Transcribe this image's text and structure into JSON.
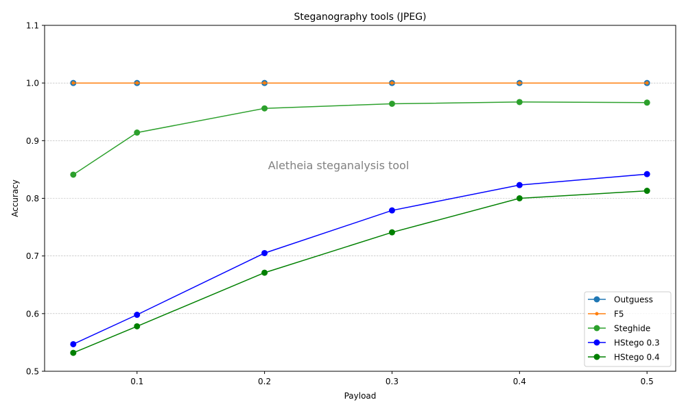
{
  "chart_data": {
    "type": "line",
    "title": "Steganography tools (JPEG)",
    "xlabel": "Payload",
    "ylabel": "Accuracy",
    "annotation": "Aletheia steganalysis tool",
    "xlim": [
      0.0275,
      0.5225
    ],
    "ylim": [
      0.5,
      1.1
    ],
    "xticks": [
      0.1,
      0.2,
      0.3,
      0.4,
      0.5
    ],
    "xtick_labels": [
      "0.1",
      "0.2",
      "0.3",
      "0.4",
      "0.5"
    ],
    "yticks": [
      0.5,
      0.6,
      0.7,
      0.8,
      0.9,
      1.0,
      1.1
    ],
    "ytick_labels": [
      "0.5",
      "0.6",
      "0.7",
      "0.8",
      "0.9",
      "1.0",
      "1.1"
    ],
    "grid": "horizontal-dashed",
    "legend_position": "lower-right",
    "x": [
      0.05,
      0.1,
      0.2,
      0.3,
      0.4,
      0.5
    ],
    "series": [
      {
        "name": "Outguess",
        "color": "#1f77b4",
        "marker": "large",
        "values": [
          1.0,
          1.0,
          1.0,
          1.0,
          1.0,
          1.0
        ]
      },
      {
        "name": "F5",
        "color": "#ff7f0e",
        "marker": "small",
        "values": [
          1.0,
          1.0,
          1.0,
          1.0,
          1.0,
          1.0
        ]
      },
      {
        "name": "Steghide",
        "color": "#2ca02c",
        "marker": "large",
        "values": [
          0.841,
          0.914,
          0.956,
          0.964,
          0.967,
          0.966
        ]
      },
      {
        "name": "HStego 0.3",
        "color": "#0000ff",
        "marker": "large",
        "values": [
          0.547,
          0.598,
          0.705,
          0.779,
          0.823,
          0.842
        ]
      },
      {
        "name": "HStego 0.4",
        "color": "#008000",
        "marker": "large",
        "values": [
          0.532,
          0.578,
          0.671,
          0.741,
          0.8,
          0.813
        ]
      }
    ]
  }
}
